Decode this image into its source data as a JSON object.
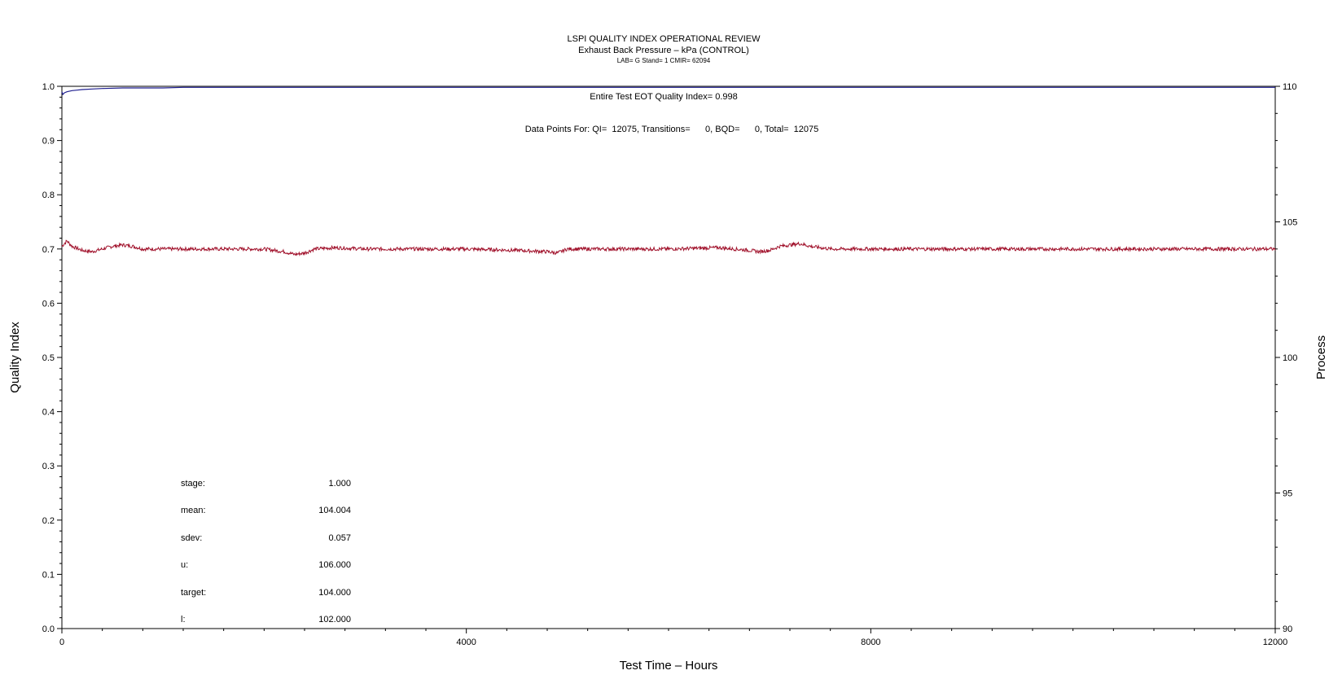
{
  "chart_data": {
    "type": "line",
    "title": "LSPI QUALITY INDEX OPERATIONAL REVIEW",
    "subtitle": "Exhaust Back Pressure – kPa (CONTROL)",
    "subtitle2": "LAB= G Stand= 1 CMIR= 62094",
    "xlabel": "Test Time – Hours",
    "ylabel_left": "Quality Index",
    "ylabel_right": "Process",
    "xlim": [
      0,
      12000
    ],
    "ylim_left": [
      0.0,
      1.0
    ],
    "ylim_right": [
      90,
      110
    ],
    "x_ticks": [
      0,
      4000,
      8000,
      12000
    ],
    "x_tick_labels": [
      "0",
      "4000",
      "8000",
      "12000"
    ],
    "y_left_ticks": [
      0.0,
      0.1,
      0.2,
      0.3,
      0.4,
      0.5,
      0.6,
      0.7,
      0.8,
      0.9,
      1.0
    ],
    "y_left_tick_labels": [
      "0.0",
      "0.1",
      "0.2",
      "0.3",
      "0.4",
      "0.5",
      "0.6",
      "0.7",
      "0.8",
      "0.9",
      "1.0"
    ],
    "y_right_ticks": [
      90,
      95,
      100,
      105,
      110
    ],
    "y_right_tick_labels": [
      "90",
      "95",
      "100",
      "105",
      "110"
    ],
    "annotations": [
      "Entire Test EOT Quality Index=   0.998",
      "Data Points For: QI=  12075, Transitions=      0, BQD=      0, Total=  12075"
    ],
    "colors": {
      "quality_index": "#1f1f8f",
      "process": "#a0102a"
    },
    "series": [
      {
        "axis": "left",
        "x": [
          0,
          10,
          25,
          50,
          100,
          150,
          200,
          300,
          400,
          600,
          800,
          1000,
          1200,
          1500,
          2000,
          4000,
          6000,
          8000,
          10000,
          12000
        ],
        "values": [
          0.99,
          0.985,
          0.988,
          0.99,
          0.992,
          0.993,
          0.994,
          0.995,
          0.996,
          0.997,
          0.997,
          0.997,
          0.998,
          0.998,
          0.998,
          0.998,
          0.998,
          0.998,
          0.998,
          0.998
        ]
      },
      {
        "axis": "right",
        "x": [
          0,
          50,
          100,
          200,
          300,
          400,
          500,
          600,
          700,
          800,
          1000,
          1500,
          2000,
          2200,
          2300,
          2400,
          2500,
          2700,
          3000,
          3500,
          4000,
          4500,
          4800,
          4900,
          5000,
          5200,
          5500,
          6000,
          6500,
          6800,
          6900,
          7000,
          7100,
          7200,
          7300,
          7400,
          7600,
          8000,
          9000,
          10000,
          11000,
          12000
        ],
        "values": [
          104.1,
          104.3,
          104.1,
          103.95,
          103.9,
          104.0,
          104.1,
          104.15,
          104.1,
          104.0,
          104.0,
          104.0,
          104.0,
          103.9,
          103.8,
          103.85,
          104.0,
          104.05,
          104.0,
          104.0,
          104.0,
          103.95,
          103.9,
          103.85,
          104.0,
          104.0,
          104.0,
          104.0,
          104.05,
          103.95,
          103.9,
          103.95,
          104.1,
          104.15,
          104.2,
          104.1,
          104.0,
          104.0,
          104.0,
          104.0,
          104.0,
          104.0
        ]
      }
    ]
  },
  "stats": [
    {
      "label": "stage:",
      "value": "1.000"
    },
    {
      "label": "mean:",
      "value": "104.004"
    },
    {
      "label": "sdev:",
      "value": "0.057"
    },
    {
      "label": "u:",
      "value": "106.000"
    },
    {
      "label": "target:",
      "value": "104.000"
    },
    {
      "label": "l:",
      "value": "102.000"
    }
  ]
}
